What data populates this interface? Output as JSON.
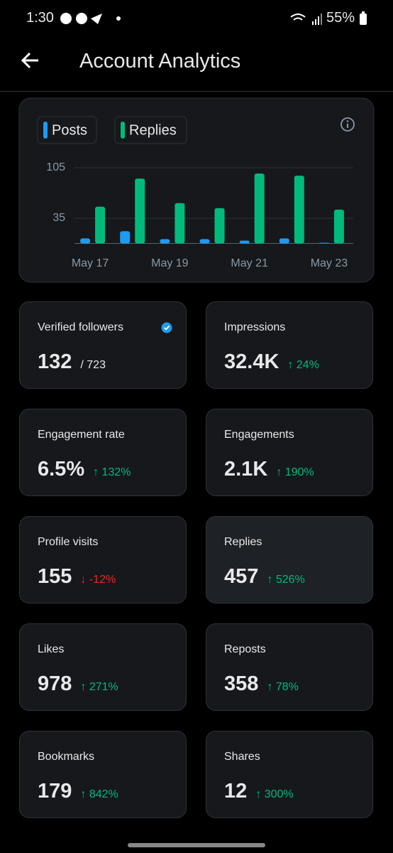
{
  "status_bar": {
    "time": "1:30",
    "battery": "55%"
  },
  "header": {
    "title": "Account Analytics"
  },
  "chart_data": {
    "type": "bar",
    "categories": [
      "May 17",
      null,
      "May 19",
      null,
      "May 21",
      null,
      "May 23"
    ],
    "series": [
      {
        "name": "Posts",
        "color": "#1d9bf0",
        "values": [
          7,
          17,
          6,
          6,
          4,
          7,
          1
        ]
      },
      {
        "name": "Replies",
        "color": "#00ba7c",
        "values": [
          51,
          90,
          56,
          49,
          97,
          94,
          47
        ]
      }
    ],
    "ylim": [
      0,
      105
    ],
    "yticks": [
      35,
      105
    ],
    "grid": true
  },
  "metrics": [
    {
      "label": "Verified followers",
      "value": "132",
      "total": "/ 723"
    },
    {
      "label": "Impressions",
      "value": "32.4K",
      "change": "↑ 24%",
      "direction": "up"
    },
    {
      "label": "Engagement rate",
      "value": "6.5%",
      "change": "↑ 132%",
      "direction": "up"
    },
    {
      "label": "Engagements",
      "value": "2.1K",
      "change": "↑ 190%",
      "direction": "up"
    },
    {
      "label": "Profile visits",
      "value": "155",
      "change": "↓ -12%",
      "direction": "down"
    },
    {
      "label": "Replies",
      "value": "457",
      "change": "↑ 526%",
      "direction": "up"
    },
    {
      "label": "Likes",
      "value": "978",
      "change": "↑ 271%",
      "direction": "up"
    },
    {
      "label": "Reposts",
      "value": "358",
      "change": "↑ 78%",
      "direction": "up"
    },
    {
      "label": "Bookmarks",
      "value": "179",
      "change": "↑ 842%",
      "direction": "up"
    },
    {
      "label": "Shares",
      "value": "12",
      "change": "↑ 300%",
      "direction": "up"
    }
  ]
}
